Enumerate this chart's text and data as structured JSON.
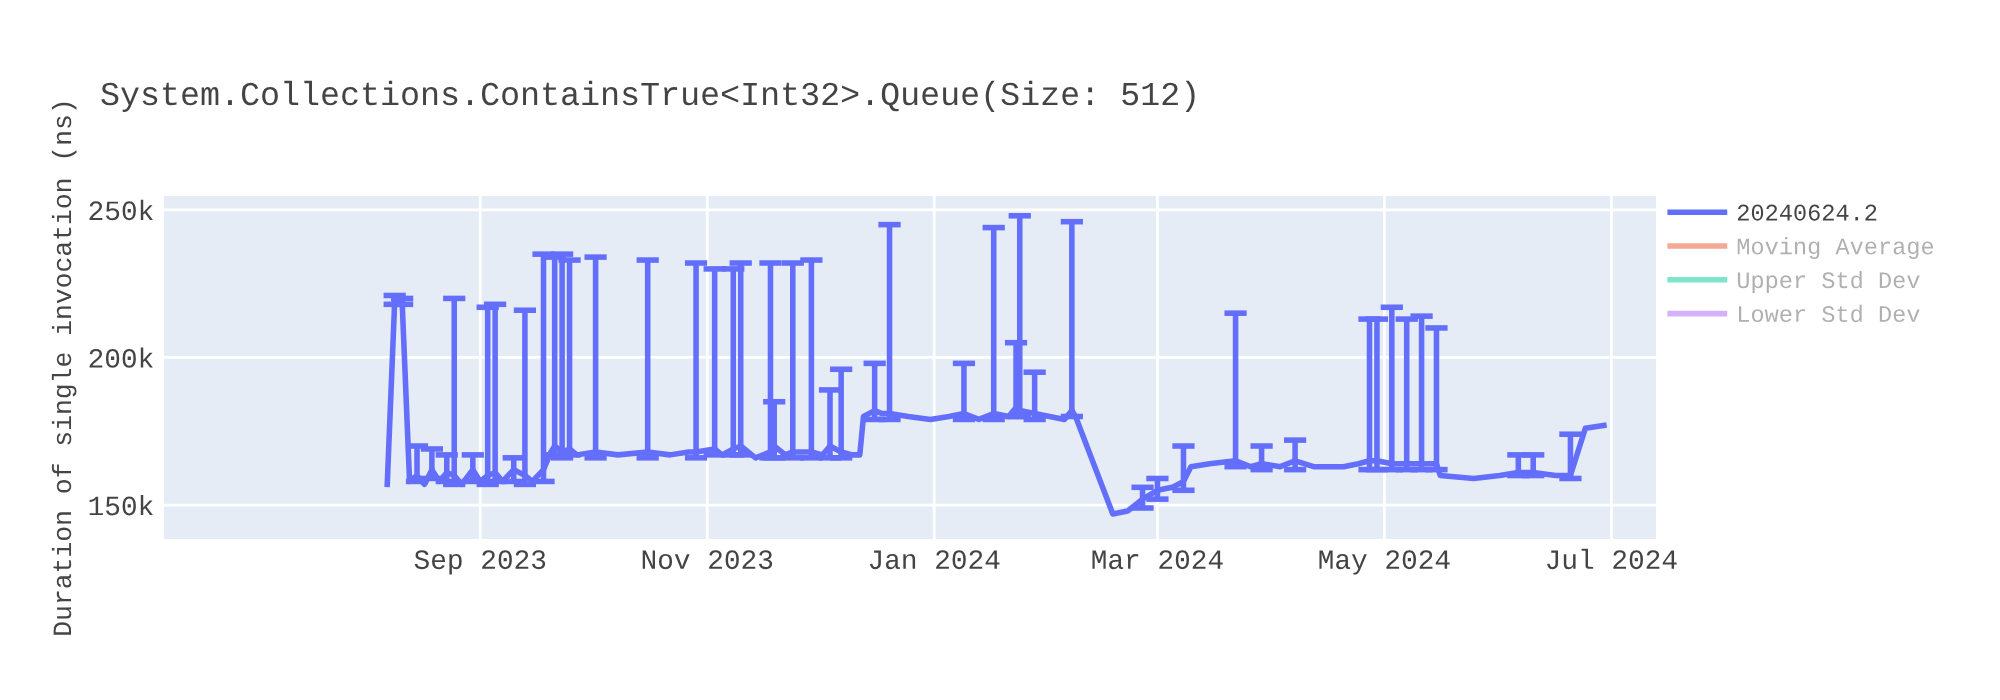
{
  "chart_data": {
    "type": "line",
    "title": "System.Collections.ContainsTrue<Int32>.Queue(Size: 512)",
    "ylabel": "Duration of single invocation (ns)",
    "x": [
      "2023-08-07",
      "2023-08-09",
      "2023-08-11",
      "2023-08-13",
      "2023-08-15",
      "2023-08-17",
      "2023-08-19",
      "2023-08-21",
      "2023-08-23",
      "2023-08-25",
      "2023-08-27",
      "2023-08-30",
      "2023-09-01",
      "2023-09-03",
      "2023-09-05",
      "2023-09-07",
      "2023-09-10",
      "2023-09-13",
      "2023-09-15",
      "2023-09-18",
      "2023-09-20",
      "2023-09-21",
      "2023-09-23",
      "2023-09-25",
      "2023-09-27",
      "2023-10-02",
      "2023-10-08",
      "2023-10-16",
      "2023-10-22",
      "2023-10-27",
      "2023-10-29",
      "2023-11-03",
      "2023-11-05",
      "2023-11-08",
      "2023-11-10",
      "2023-11-14",
      "2023-11-18",
      "2023-11-19",
      "2023-11-22",
      "2023-11-24",
      "2023-11-29",
      "2023-12-02",
      "2023-12-04",
      "2023-12-07",
      "2023-12-10",
      "2023-12-12",
      "2023-12-13",
      "2023-12-16",
      "2023-12-18",
      "2023-12-20",
      "2023-12-25",
      "2023-12-31",
      "2024-01-05",
      "2024-01-09",
      "2024-01-13",
      "2024-01-17",
      "2024-01-21",
      "2024-01-23",
      "2024-01-24",
      "2024-01-28",
      "2024-02-01",
      "2024-02-05",
      "2024-02-07",
      "2024-02-08",
      "2024-02-18",
      "2024-02-22",
      "2024-02-26",
      "2024-03-01",
      "2024-03-05",
      "2024-03-08",
      "2024-03-10",
      "2024-03-15",
      "2024-03-22",
      "2024-03-26",
      "2024-03-29",
      "2024-04-03",
      "2024-04-07",
      "2024-04-12",
      "2024-04-20",
      "2024-04-24",
      "2024-04-27",
      "2024-04-29",
      "2024-05-03",
      "2024-05-07",
      "2024-05-11",
      "2024-05-15",
      "2024-05-16",
      "2024-05-25",
      "2024-06-01",
      "2024-06-06",
      "2024-06-10",
      "2024-06-16",
      "2024-06-20",
      "2024-06-24",
      "2024-06-29"
    ],
    "series": [
      {
        "name": "20240624.2",
        "color": "#636efa",
        "values": [
          157000,
          219000,
          219000,
          158000,
          160000,
          157000,
          162000,
          158000,
          161000,
          160000,
          157000,
          162000,
          158000,
          160000,
          161000,
          158000,
          162000,
          160000,
          158000,
          162000,
          168000,
          170000,
          168000,
          169000,
          167000,
          168000,
          167000,
          168000,
          167000,
          168000,
          168000,
          169000,
          167000,
          169000,
          170000,
          166000,
          168000,
          170000,
          167000,
          168000,
          168000,
          167000,
          170000,
          168000,
          167000,
          167000,
          180000,
          182000,
          181000,
          181000,
          180000,
          179000,
          180000,
          181000,
          179000,
          181000,
          180000,
          183000,
          182000,
          181000,
          180000,
          179000,
          182000,
          180000,
          147000,
          148000,
          152000,
          155000,
          156000,
          158000,
          163000,
          164000,
          165000,
          163000,
          164000,
          163000,
          165000,
          163000,
          163000,
          164000,
          165000,
          165000,
          164000,
          164000,
          164000,
          164000,
          160000,
          159000,
          160000,
          161000,
          161000,
          160000,
          160000,
          176000,
          177000
        ],
        "errors": [
          null,
          [
            218000,
            221000
          ],
          [
            218000,
            220000
          ],
          null,
          [
            158000,
            170000
          ],
          null,
          [
            159000,
            169000
          ],
          null,
          [
            158000,
            167000
          ],
          [
            157000,
            220000
          ],
          null,
          [
            158000,
            167000
          ],
          null,
          [
            157000,
            217000
          ],
          [
            158000,
            218000
          ],
          null,
          [
            158000,
            166000
          ],
          [
            157000,
            216000
          ],
          null,
          [
            158000,
            235000
          ],
          null,
          [
            167000,
            234000
          ],
          [
            166000,
            235000
          ],
          [
            167000,
            233000
          ],
          null,
          [
            166000,
            234000
          ],
          null,
          [
            166000,
            233000
          ],
          null,
          null,
          [
            166000,
            232000
          ],
          [
            167000,
            230000
          ],
          null,
          [
            167000,
            230000
          ],
          [
            167000,
            232000
          ],
          null,
          [
            166000,
            232000
          ],
          [
            166000,
            185000
          ],
          null,
          [
            166000,
            232000
          ],
          [
            166000,
            233000
          ],
          null,
          [
            166000,
            189000
          ],
          [
            166000,
            196000
          ],
          null,
          null,
          null,
          [
            179000,
            198000
          ],
          null,
          [
            179000,
            245000
          ],
          null,
          null,
          null,
          [
            179000,
            198000
          ],
          null,
          [
            179000,
            244000
          ],
          null,
          [
            180000,
            205000
          ],
          [
            180000,
            248000
          ],
          [
            179000,
            195000
          ],
          null,
          null,
          [
            180000,
            246000
          ],
          null,
          null,
          null,
          [
            149000,
            156000
          ],
          [
            152000,
            159000
          ],
          null,
          [
            155000,
            170000
          ],
          null,
          null,
          [
            163000,
            215000
          ],
          null,
          [
            162000,
            170000
          ],
          null,
          [
            162000,
            172000
          ],
          null,
          null,
          null,
          [
            162000,
            213000
          ],
          [
            162000,
            213000
          ],
          [
            162000,
            217000
          ],
          [
            162000,
            213000
          ],
          [
            162000,
            214000
          ],
          [
            162000,
            210000
          ],
          null,
          null,
          null,
          [
            160000,
            167000
          ],
          [
            160000,
            167000
          ],
          null,
          [
            159000,
            174000
          ],
          null,
          null
        ]
      },
      {
        "name": "Moving Average",
        "color": "#f4a996",
        "values": [
          null,
          null,
          null,
          null,
          null,
          null,
          null,
          null,
          null,
          null,
          null,
          null,
          null,
          null,
          null,
          null,
          null,
          null,
          null,
          null,
          null,
          null,
          null,
          null,
          null,
          null,
          null,
          null,
          null,
          null,
          null,
          null,
          null,
          null,
          null,
          null,
          null,
          null,
          null,
          null,
          null,
          null,
          null,
          null,
          null,
          null,
          null,
          null,
          null,
          null,
          null,
          null,
          null,
          null,
          null,
          null,
          null,
          null,
          null,
          null,
          null,
          null,
          null,
          null,
          null,
          null,
          null,
          null,
          null,
          null,
          null,
          null,
          null,
          null,
          null,
          null,
          null,
          null,
          null,
          null,
          null,
          null,
          null,
          null,
          null,
          null,
          null,
          null,
          null,
          null,
          null,
          null,
          null,
          null,
          null
        ]
      },
      {
        "name": "Upper Std Dev",
        "color": "#7fe5ca",
        "values": [
          null,
          null,
          null,
          null,
          null,
          null,
          null,
          null,
          null,
          null,
          null,
          null,
          null,
          null,
          null,
          null,
          null,
          null,
          null,
          null,
          null,
          null,
          null,
          null,
          null,
          null,
          null,
          null,
          null,
          null,
          null,
          null,
          null,
          null,
          null,
          null,
          null,
          null,
          null,
          null,
          null,
          null,
          null,
          null,
          null,
          null,
          null,
          null,
          null,
          null,
          null,
          null,
          null,
          null,
          null,
          null,
          null,
          null,
          null,
          null,
          null,
          null,
          null,
          null,
          null,
          null,
          null,
          null,
          null,
          null,
          null,
          null,
          null,
          null,
          null,
          null,
          null,
          null,
          null,
          null,
          null,
          null,
          null,
          null,
          null,
          null,
          null,
          null,
          null,
          null,
          null,
          null,
          null,
          null,
          null
        ]
      },
      {
        "name": "Lower Std Dev",
        "color": "#d5b1fc",
        "values": [
          null,
          null,
          null,
          null,
          null,
          null,
          null,
          null,
          null,
          null,
          null,
          null,
          null,
          null,
          null,
          null,
          null,
          null,
          null,
          null,
          null,
          null,
          null,
          null,
          null,
          null,
          null,
          null,
          null,
          null,
          null,
          null,
          null,
          null,
          null,
          null,
          null,
          null,
          null,
          null,
          null,
          null,
          null,
          null,
          null,
          null,
          null,
          null,
          null,
          null,
          null,
          null,
          null,
          null,
          null,
          null,
          null,
          null,
          null,
          null,
          null,
          null,
          null,
          null,
          null,
          null,
          null,
          null,
          null,
          null,
          null,
          null,
          null,
          null,
          null,
          null,
          null,
          null,
          null,
          null,
          null,
          null,
          null,
          null,
          null,
          null,
          null,
          null,
          null,
          null,
          null,
          null,
          null,
          null,
          null
        ]
      }
    ],
    "xlim": [
      "2023-06-08",
      "2024-07-13"
    ],
    "xticks": [
      {
        "value": "2023-09-01",
        "label": "Sep 2023"
      },
      {
        "value": "2023-11-01",
        "label": "Nov 2023"
      },
      {
        "value": "2024-01-01",
        "label": "Jan 2024"
      },
      {
        "value": "2024-03-01",
        "label": "Mar 2024"
      },
      {
        "value": "2024-05-01",
        "label": "May 2024"
      },
      {
        "value": "2024-07-01",
        "label": "Jul 2024"
      }
    ],
    "ylim": [
      138500,
      254700
    ],
    "yticks": [
      {
        "value": 150000,
        "label": "150k"
      },
      {
        "value": 200000,
        "label": "200k"
      },
      {
        "value": 250000,
        "label": "250k"
      }
    ],
    "grid": true,
    "legend": "top right",
    "marker": "none",
    "line_style": "solid"
  }
}
